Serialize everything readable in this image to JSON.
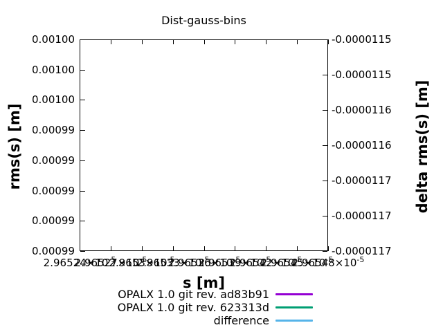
{
  "title": "Dist-gauss-bins",
  "axes": {
    "x": {
      "label": "s [m]",
      "ticks": [
        {
          "mantissa": "2.96524",
          "base": "×10",
          "exponent": "-5"
        },
        {
          "mantissa": "2.96527",
          "base": "×10",
          "exponent": "-5"
        },
        {
          "mantissa": "2.9653",
          "base": "×10",
          "exponent": "-5"
        },
        {
          "mantissa": "2.96533",
          "base": "×10",
          "exponent": "-5"
        },
        {
          "mantissa": "2.96536",
          "base": "×10",
          "exponent": "-5"
        },
        {
          "mantissa": "2.96539",
          "base": "×10",
          "exponent": "-5"
        },
        {
          "mantissa": "2.96542",
          "base": "×10",
          "exponent": "-5"
        },
        {
          "mantissa": "2.96545",
          "base": "×10",
          "exponent": "-5"
        },
        {
          "mantissa": "2.96548",
          "base": "×10",
          "exponent": "-5"
        }
      ]
    },
    "y_left": {
      "label": "rms(s) [m]",
      "ticks": [
        "0.00100",
        "0.00100",
        "0.00100",
        "0.00099",
        "0.00099",
        "0.00099",
        "0.00099",
        "0.00099"
      ]
    },
    "y_right": {
      "label": "delta rms(s) [m]",
      "ticks": [
        "-0.0000115",
        "-0.0000115",
        "-0.0000116",
        "-0.0000116",
        "-0.0000117",
        "-0.0000117",
        "-0.0000117"
      ]
    }
  },
  "legend": [
    {
      "label": "OPALX 1.0 git rev. ad83b91",
      "color": "#9400d3"
    },
    {
      "label": "OPALX 1.0 git rev. 623313d",
      "color": "#009e73"
    },
    {
      "label": "difference",
      "color": "#56b4e9"
    }
  ],
  "chart_data": {
    "type": "line",
    "title": "Dist-gauss-bins",
    "xlabel": "s [m]",
    "ylabel": "rms(s) [m]",
    "ylabel_right": "delta rms(s) [m]",
    "xlim": [
      2.96524e-05,
      2.96548e-05
    ],
    "ylim_left": [
      0.00099,
      0.001
    ],
    "ylim_right": [
      -1.17e-05,
      -1.15e-05
    ],
    "x_tick_values": [
      2.96524e-05,
      2.96527e-05,
      2.9653e-05,
      2.96533e-05,
      2.96536e-05,
      2.96539e-05,
      2.96542e-05,
      2.96545e-05,
      2.96548e-05
    ],
    "y_left_tick_values": [
      0.001,
      0.001,
      0.001,
      0.00099,
      0.00099,
      0.00099,
      0.00099,
      0.00099
    ],
    "y_right_tick_values": [
      -1.15e-05,
      -1.15e-05,
      -1.16e-05,
      -1.16e-05,
      -1.17e-05,
      -1.17e-05,
      -1.17e-05
    ],
    "grid": false,
    "legend_position": "below-plot",
    "series": [
      {
        "name": "OPALX 1.0 git rev. ad83b91",
        "color": "#9400d3",
        "values": []
      },
      {
        "name": "OPALX 1.0 git rev. 623313d",
        "color": "#009e73",
        "values": []
      },
      {
        "name": "difference",
        "color": "#56b4e9",
        "values": []
      }
    ],
    "plot_area_empty": true
  }
}
